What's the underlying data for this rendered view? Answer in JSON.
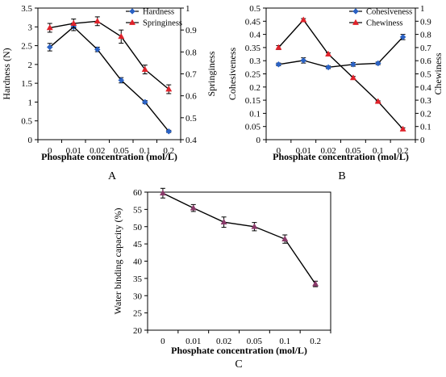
{
  "chart_data": [
    {
      "panel": "A",
      "type": "line",
      "categories": [
        "0",
        "0.01",
        "0.02",
        "0.05",
        "0.1",
        "0.2"
      ],
      "xlabel": "Phosphate concentration (mol/L)",
      "y_left": {
        "label": "Hardness (N)",
        "lim": [
          0,
          3.5
        ],
        "ticks": [
          "0",
          "0.5",
          "1",
          "1.5",
          "2",
          "2.5",
          "3",
          "3.5"
        ]
      },
      "y_right": {
        "label": "Springiness",
        "lim": [
          0.4,
          1
        ],
        "ticks": [
          "0.4",
          "0.5",
          "0.6",
          "0.7",
          "0.8",
          "0.9",
          "1"
        ]
      },
      "series": [
        {
          "name": "Hardness",
          "axis": "left",
          "marker": "diamond",
          "color": "#2b62c4",
          "values": [
            2.46,
            3.0,
            2.4,
            1.58,
            1.0,
            0.22
          ],
          "errors": [
            0.1,
            0.1,
            0.06,
            0.07,
            0.04,
            0.03
          ]
        },
        {
          "name": "Springiness",
          "axis": "right",
          "marker": "triangle",
          "color": "#e0222a",
          "values": [
            0.91,
            0.93,
            0.94,
            0.87,
            0.72,
            0.63
          ],
          "errors": [
            0.02,
            0.02,
            0.02,
            0.03,
            0.02,
            0.02
          ]
        }
      ],
      "legend": "top-right",
      "grid": false
    },
    {
      "panel": "B",
      "type": "line",
      "categories": [
        "0",
        "0.01",
        "0.02",
        "0.05",
        "0.1",
        "0.2"
      ],
      "xlabel": "Phosphate concentration (mol/L)",
      "y_left": {
        "label": "Cohesiveness",
        "lim": [
          0,
          0.5
        ],
        "ticks": [
          "0",
          "0.05",
          "0.1",
          "0.15",
          "0.2",
          "0.25",
          "0.3",
          "0.35",
          "0.4",
          "0.45",
          "0.5"
        ]
      },
      "y_right": {
        "label": "Chewiness",
        "lim": [
          0,
          1
        ],
        "ticks": [
          "0",
          "0.1",
          "0.2",
          "0.3",
          "0.4",
          "0.5",
          "0.6",
          "0.7",
          "0.8",
          "0.9",
          "1"
        ]
      },
      "series": [
        {
          "name": "Cohesiveness",
          "axis": "left",
          "marker": "diamond",
          "color": "#2b62c4",
          "values": [
            0.286,
            0.301,
            0.275,
            0.286,
            0.29,
            0.39
          ],
          "errors": [
            0.005,
            0.01,
            0.005,
            0.007,
            0.005,
            0.01
          ]
        },
        {
          "name": "Chewiness",
          "axis": "right",
          "marker": "triangle",
          "color": "#e0222a",
          "values": [
            0.7,
            0.91,
            0.65,
            0.47,
            0.29,
            0.08
          ],
          "errors": [
            0.015,
            0.01,
            0.01,
            0.01,
            0.005,
            0.01
          ]
        }
      ],
      "legend": "top-right",
      "grid": false
    },
    {
      "panel": "C",
      "type": "line",
      "categories": [
        "0",
        "0.01",
        "0.02",
        "0.05",
        "0.1",
        "0.2"
      ],
      "xlabel": "Phosphate concentration (mol/L)",
      "y_left": {
        "label": "Water binding capacity (%)",
        "lim": [
          20,
          60
        ],
        "ticks": [
          "20",
          "25",
          "30",
          "35",
          "40",
          "45",
          "50",
          "55",
          "60"
        ]
      },
      "series": [
        {
          "axis": "left",
          "marker": "triangle",
          "color": "#8a3a6a",
          "values": [
            59.7,
            55.4,
            51.3,
            50.0,
            46.4,
            33.4
          ],
          "errors": [
            1.4,
            1.0,
            1.5,
            1.2,
            1.2,
            0.8
          ]
        }
      ],
      "grid": false
    }
  ]
}
